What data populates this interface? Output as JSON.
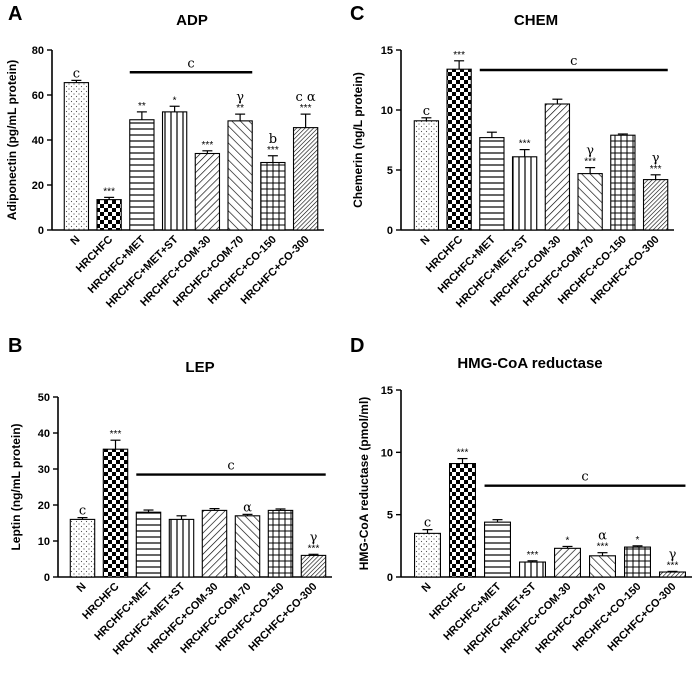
{
  "chart_data": [
    {
      "panel": "A",
      "type": "bar",
      "title": "ADP",
      "ylabel": "Adiponectin (pg/mL protein)",
      "ylim": [
        0,
        80
      ],
      "yticks": [
        0,
        20,
        40,
        60,
        80
      ],
      "categories": [
        "N",
        "HRCHFC",
        "HRCHFC+MET",
        "HRCHFC+MET+ST",
        "HRCHFC+COM-30",
        "HRCHFC+COM-70",
        "HRCHFC+CO-150",
        "HRCHFC+CO-300"
      ],
      "values": [
        65.5,
        13.5,
        49,
        52.5,
        34,
        48.5,
        30,
        45.5
      ],
      "errors": [
        1,
        1,
        3.5,
        2.5,
        1.2,
        3,
        3,
        6
      ],
      "stars": [
        "",
        "***",
        "**",
        "*",
        "***",
        "**",
        "***",
        "***"
      ],
      "above": [
        "c",
        "",
        "",
        "",
        "",
        "γ",
        "b",
        "c  α"
      ],
      "group_bar": {
        "from": 2,
        "to": 5,
        "label": "c"
      }
    },
    {
      "panel": "C",
      "type": "bar",
      "title": "CHEM",
      "ylabel": "Chemerin (ng/L protein)",
      "ylim": [
        0,
        15
      ],
      "yticks": [
        0,
        5,
        10,
        15
      ],
      "categories": [
        "N",
        "HRCHFC",
        "HRCHFC+MET",
        "HRCHFC+MET+ST",
        "HRCHFC+COM-30",
        "HRCHFC+COM-70",
        "HRCHFC+CO-150",
        "HRCHFC+CO-300"
      ],
      "values": [
        9.1,
        13.4,
        7.7,
        6.1,
        10.5,
        4.7,
        7.9,
        4.2
      ],
      "errors": [
        0.25,
        0.7,
        0.45,
        0.6,
        0.4,
        0.5,
        0.1,
        0.4
      ],
      "stars": [
        "",
        "***",
        "",
        "***",
        "",
        "***",
        "",
        "***"
      ],
      "above": [
        "c",
        "",
        "",
        "",
        "",
        "γ",
        "",
        "γ"
      ],
      "group_bar": {
        "from": 2,
        "to": 7,
        "label": "c"
      }
    },
    {
      "panel": "B",
      "type": "bar",
      "title": "LEP",
      "ylabel": "Leptin (ng/mL protein)",
      "ylim": [
        0,
        50
      ],
      "yticks": [
        0,
        10,
        20,
        30,
        40,
        50
      ],
      "categories": [
        "N",
        "HRCHFC",
        "HRCHFC+MET",
        "HRCHFC+MET+ST",
        "HRCHFC+COM-30",
        "HRCHFC+COM-70",
        "HRCHFC+CO-150",
        "HRCHFC+CO-300"
      ],
      "values": [
        16,
        35.5,
        18,
        16,
        18.5,
        17,
        18.5,
        6
      ],
      "errors": [
        0.5,
        2.5,
        0.6,
        1,
        0.5,
        0.4,
        0.4,
        0.3
      ],
      "stars": [
        "",
        "***",
        "",
        "",
        "",
        "",
        "",
        "***"
      ],
      "above": [
        "c",
        "",
        "",
        "",
        "",
        "α",
        "",
        "γ"
      ],
      "group_bar": {
        "from": 2,
        "to": 7,
        "label": "c"
      }
    },
    {
      "panel": "D",
      "type": "bar",
      "title": "HMG-CoA reductase",
      "ylabel": "HMG-CoA reductase (pmol/ml)",
      "ylim": [
        0,
        15
      ],
      "yticks": [
        0,
        5,
        10,
        15
      ],
      "categories": [
        "N",
        "HRCHFC",
        "HRCHFC+MET",
        "HRCHFC+MET+ST",
        "HRCHFC+COM-30",
        "HRCHFC+COM-70",
        "HRCHFC+CO-150",
        "HRCHFC+CO-300"
      ],
      "values": [
        3.5,
        9.1,
        4.4,
        1.2,
        2.3,
        1.7,
        2.4,
        0.4
      ],
      "errors": [
        0.3,
        0.4,
        0.2,
        0.1,
        0.15,
        0.25,
        0.1,
        0.05
      ],
      "stars": [
        "",
        "***",
        "",
        "***",
        "*",
        "***",
        "*",
        "***"
      ],
      "above": [
        "c",
        "",
        "",
        "",
        "",
        "α",
        "",
        "γ"
      ],
      "group_bar": {
        "from": 2,
        "to": 7,
        "label": "c"
      }
    }
  ]
}
